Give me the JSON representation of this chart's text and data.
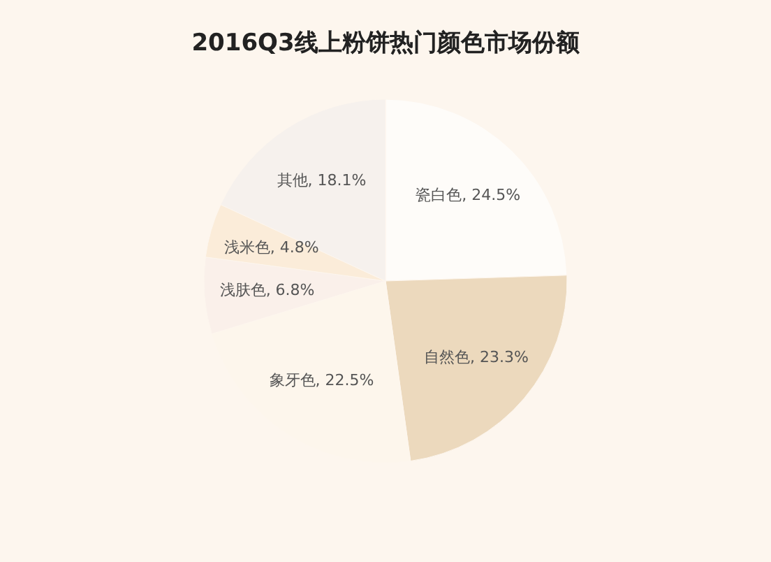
{
  "chart_data": {
    "type": "pie",
    "title": "2016Q3线上粉饼热门颜色市场份额",
    "categories": [
      "瓷白色",
      "自然色",
      "象牙色",
      "浅肤色",
      "浅米色",
      "其他"
    ],
    "values": [
      24.5,
      23.3,
      22.5,
      6.8,
      4.8,
      18.1
    ],
    "colors": [
      "#fefcf9",
      "#ecd9bd",
      "#fdf6ec",
      "#faf0ea",
      "#fbecd9",
      "#f6f1ed"
    ],
    "value_labels": [
      "24.5%",
      "23.3%",
      "22.5%",
      "6.8%",
      "4.8%",
      "18.1%"
    ],
    "legend": false
  }
}
